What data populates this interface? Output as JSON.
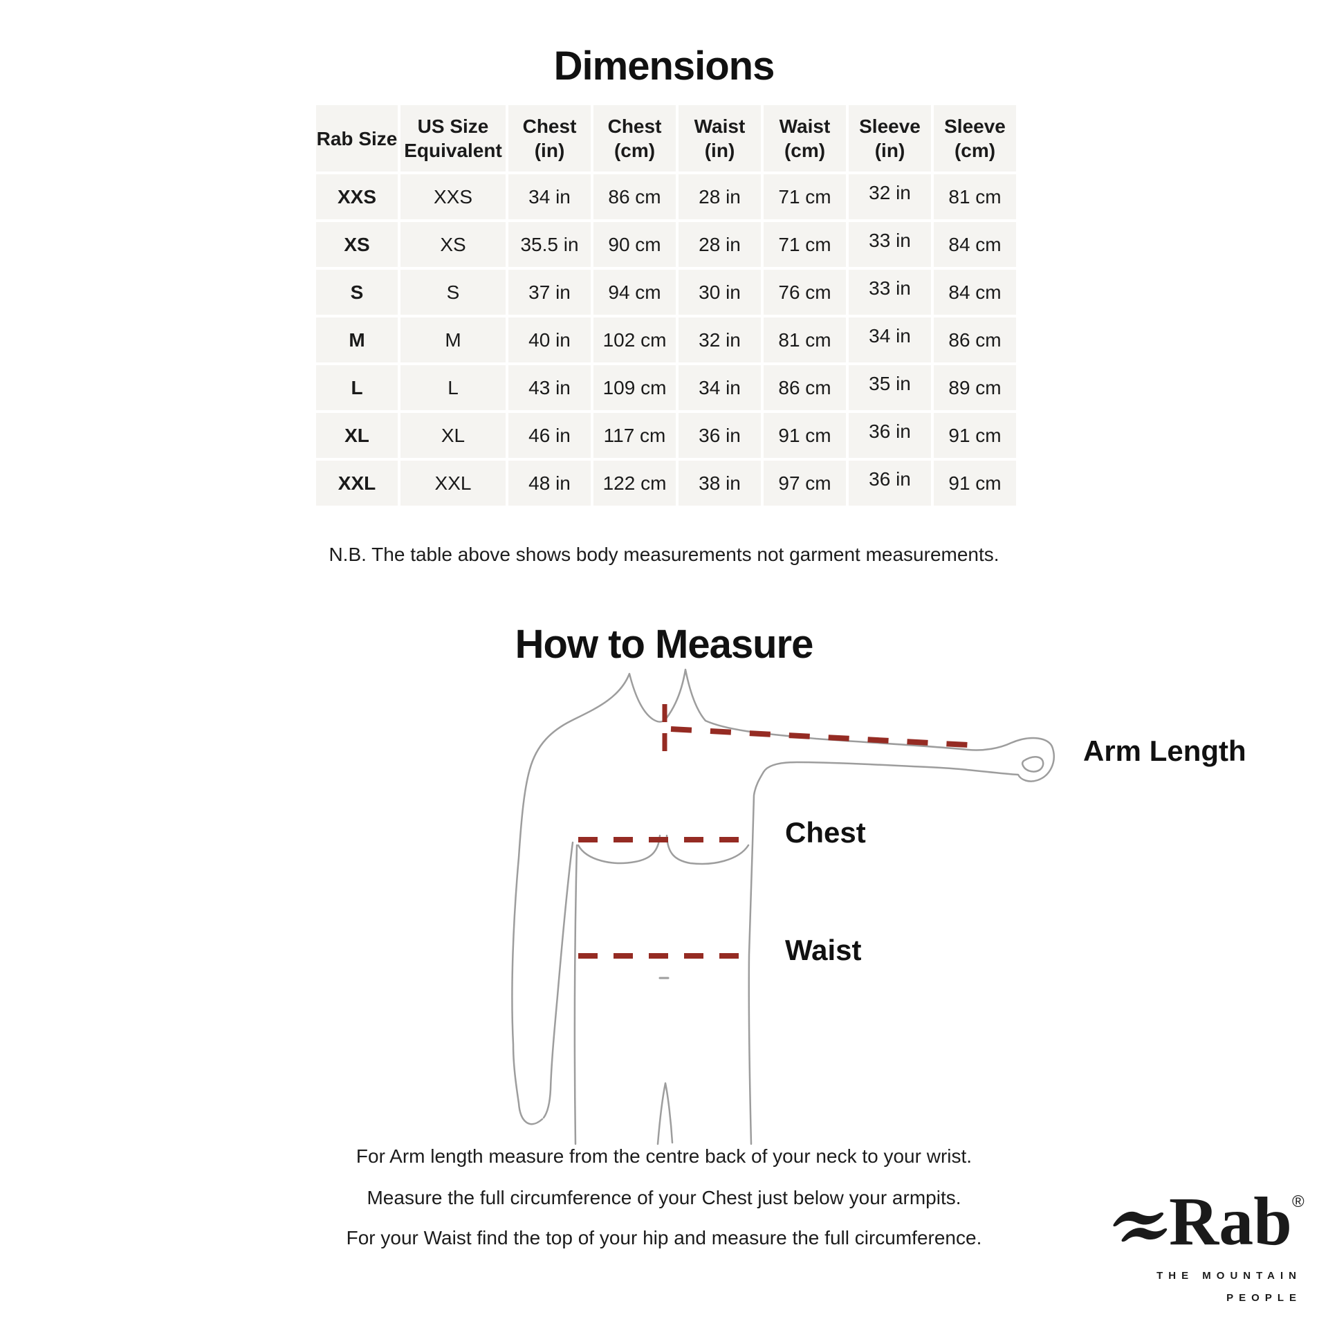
{
  "page": {
    "title": "Dimensions",
    "note": "N.B. The table above shows body measurements not garment measurements.",
    "section2_title": "How to Measure"
  },
  "size_table": {
    "columns": [
      "Rab Size",
      "US Size Equivalent",
      "Chest (in)",
      "Chest (cm)",
      "Waist (in)",
      "Waist (cm)",
      "Sleeve (in)",
      "Sleeve (cm)"
    ],
    "rows": [
      [
        "XXS",
        "XXS",
        "34 in",
        "86 cm",
        "28 in",
        "71 cm",
        "32 in",
        "81 cm"
      ],
      [
        "XS",
        "XS",
        "35.5 in",
        "90 cm",
        "28 in",
        "71 cm",
        "33 in",
        "84 cm"
      ],
      [
        "S",
        "S",
        "37 in",
        "94 cm",
        "30 in",
        "76 cm",
        "33 in",
        "84 cm"
      ],
      [
        "M",
        "M",
        "40 in",
        "102 cm",
        "32 in",
        "81 cm",
        "34 in",
        "86 cm"
      ],
      [
        "L",
        "L",
        "43 in",
        "109 cm",
        "34 in",
        "86 cm",
        "35 in",
        "89 cm"
      ],
      [
        "XL",
        "XL",
        "46 in",
        "117 cm",
        "36 in",
        "91 cm",
        "36 in",
        "91 cm"
      ],
      [
        "XXL",
        "XXL",
        "48 in",
        "122 cm",
        "38 in",
        "97 cm",
        "36 in",
        "91 cm"
      ]
    ]
  },
  "diagram": {
    "labels": {
      "arm_length": "Arm Length",
      "chest": "Chest",
      "waist": "Waist"
    }
  },
  "instructions": [
    "For Arm length measure from the centre back of your neck to your wrist.",
    "Measure the full circumference of your Chest just below your armpits.",
    "For your Waist find the top of your hip and measure the full circumference."
  ],
  "brand": {
    "name": "Rab",
    "registered": "®",
    "tagline_line1": "THE MOUNTAIN",
    "tagline_line2": "PEOPLE"
  },
  "colors": {
    "dash_red": "#952b23",
    "figure_outline": "#9d9d9d",
    "cell_bg": "#f5f4f1"
  }
}
